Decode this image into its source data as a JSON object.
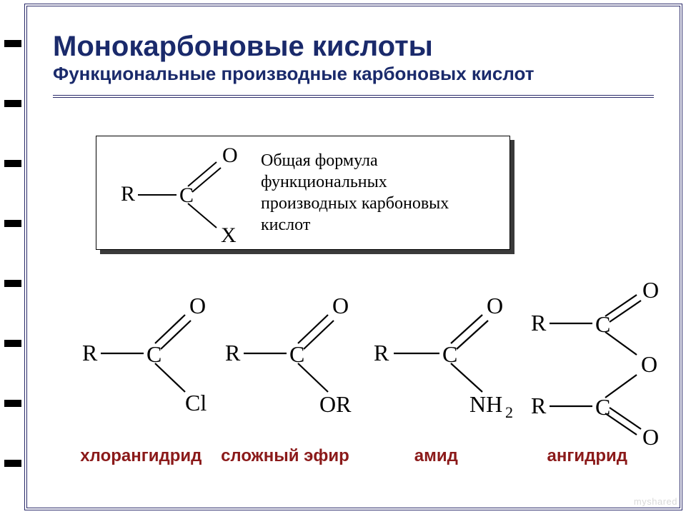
{
  "title": {
    "main": "Монокарбоновые кислоты",
    "sub": "Функциональные производные карбоновых кислот",
    "main_color": "#1a2a6b",
    "sub_color": "#1a2a6b",
    "main_fontsize": 40,
    "sub_fontsize": 26
  },
  "frame": {
    "border_color": "#2b2b6a",
    "background": "#ffffff"
  },
  "ticks": {
    "color": "#000000",
    "count": 8,
    "positions": [
      56,
      140,
      224,
      308,
      392,
      476,
      560,
      644
    ]
  },
  "general": {
    "text_line1": "Общая формула функциональных",
    "text_line2": "производных карбоновых кислот",
    "formula": {
      "R": "R",
      "C": "C",
      "O": "O",
      "X": "X"
    }
  },
  "derivatives": [
    {
      "label": "хлорангидрид",
      "sub": "Cl",
      "type": "simple"
    },
    {
      "label": "сложный эфир",
      "sub": "OR",
      "type": "simple"
    },
    {
      "label": "амид",
      "sub": "NH",
      "subnum": "2",
      "type": "simple"
    },
    {
      "label": "ангидрид",
      "type": "anhydride"
    }
  ],
  "colors": {
    "label": "#8b1a1a",
    "atom": "#000000",
    "bond": "#000000"
  },
  "watermark": "myshared"
}
